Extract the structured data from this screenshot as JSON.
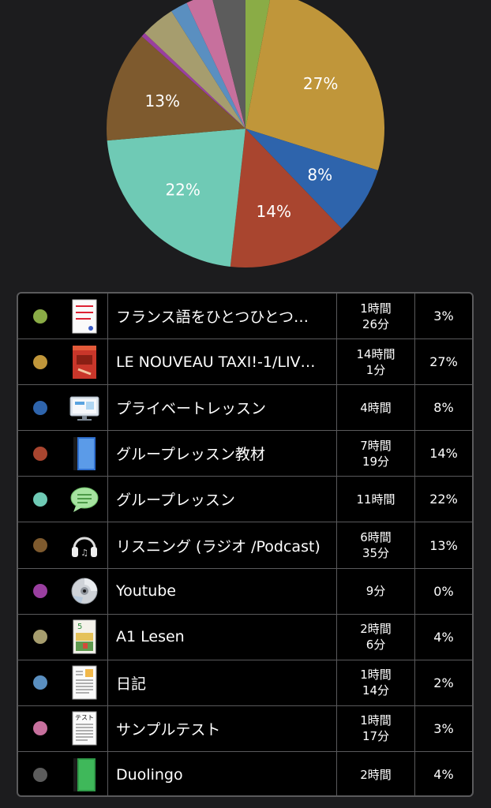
{
  "chart_data": {
    "type": "pie",
    "slices": [
      {
        "color": "#8aac46",
        "percent": 3,
        "label": ""
      },
      {
        "color": "#c0963a",
        "percent": 27,
        "label": "27%"
      },
      {
        "color": "#2e64ac",
        "percent": 8,
        "label": "8%"
      },
      {
        "color": "#a9452f",
        "percent": 14,
        "label": "14%"
      },
      {
        "color": "#6fcab5",
        "percent": 22,
        "label": "22%"
      },
      {
        "color": "#7e5a2e",
        "percent": 13,
        "label": "13%"
      },
      {
        "color": "#9a3fa0",
        "percent": 0.5,
        "label": ""
      },
      {
        "color": "#a69d6e",
        "percent": 4,
        "label": ""
      },
      {
        "color": "#5a8fc0",
        "percent": 2,
        "label": ""
      },
      {
        "color": "#c7709d",
        "percent": 3,
        "label": ""
      },
      {
        "color": "#5c5c5c",
        "percent": 4,
        "label": ""
      }
    ]
  },
  "rows": [
    {
      "color": "#8aac46",
      "icon": "japanese-book-icon",
      "name": "フランス語をひとつひとつ…",
      "time": [
        "1時間",
        "26分"
      ],
      "percent": "3%"
    },
    {
      "color": "#c0963a",
      "icon": "taxi-book-icon",
      "name": "LE NOUVEAU TAXI!-1/LIV…",
      "time": [
        "14時間",
        "1分"
      ],
      "percent": "27%"
    },
    {
      "color": "#2e64ac",
      "icon": "monitor-icon",
      "name": "プライベートレッスン",
      "time": [
        "4時間"
      ],
      "percent": "8%"
    },
    {
      "color": "#a9452f",
      "icon": "blue-book-icon",
      "name": "グループレッスン教材",
      "time": [
        "7時間",
        "19分"
      ],
      "percent": "14%"
    },
    {
      "color": "#6fcab5",
      "icon": "speech-bubble-icon",
      "name": "グループレッスン",
      "time": [
        "11時間"
      ],
      "percent": "22%"
    },
    {
      "color": "#7e5a2e",
      "icon": "headphones-icon",
      "name": "リスニング (ラジオ /Podcast)",
      "time": [
        "6時間",
        "35分"
      ],
      "percent": "13%"
    },
    {
      "color": "#9a3fa0",
      "icon": "cd-icon",
      "name": "Youtube",
      "time": [
        "9分"
      ],
      "percent": "0%"
    },
    {
      "color": "#a69d6e",
      "icon": "lesen-book-icon",
      "name": "A1 Lesen",
      "time": [
        "2時間",
        "6分"
      ],
      "percent": "4%"
    },
    {
      "color": "#5a8fc0",
      "icon": "diary-page-icon",
      "name": "日記",
      "time": [
        "1時間",
        "14分"
      ],
      "percent": "2%"
    },
    {
      "color": "#c7709d",
      "icon": "test-sheet-icon",
      "name": "サンプルテスト",
      "time": [
        "1時間",
        "17分"
      ],
      "percent": "3%"
    },
    {
      "color": "#5c5c5c",
      "icon": "green-book-icon",
      "name": "Duolingo",
      "time": [
        "2時間"
      ],
      "percent": "4%"
    }
  ],
  "test_icon_text": "テスト"
}
